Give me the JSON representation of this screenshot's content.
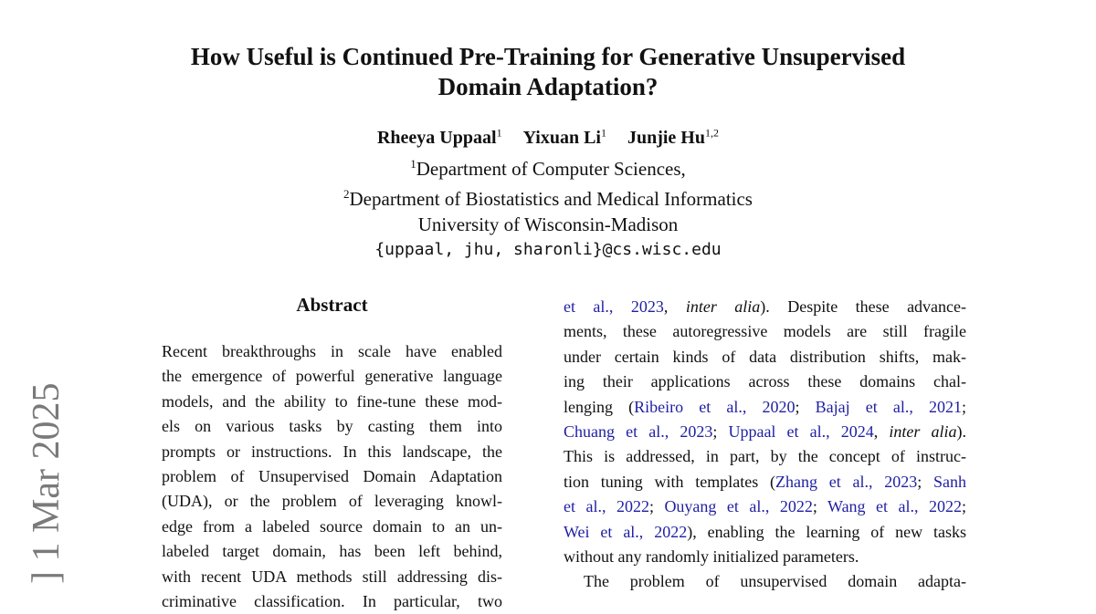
{
  "title": {
    "line1": "How Useful is Continued Pre-Training for Generative Unsupervised",
    "line2": "Domain Adaptation?"
  },
  "authors": [
    {
      "name": "Rheeya Uppaal",
      "sup": "1"
    },
    {
      "name": "Yixuan Li",
      "sup": "1"
    },
    {
      "name": "Junjie Hu",
      "sup": "1,2"
    }
  ],
  "affiliations": [
    {
      "sup": "1",
      "text": "Department of Computer Sciences,"
    },
    {
      "sup": "2",
      "text": "Department of Biostatistics and Medical Informatics"
    },
    {
      "sup": "",
      "text": "University of Wisconsin-Madison"
    }
  ],
  "email": "{uppaal, jhu, sharonli}@cs.wisc.edu",
  "arxiv_stamp": "] 1 Mar 2025",
  "abstract": {
    "heading": "Abstract",
    "lines": [
      "Recent breakthroughs in scale have enabled",
      "the emergence of powerful generative language",
      "models, and the ability to fine-tune these mod-",
      "els on various tasks by casting them into",
      "prompts or instructions. In this landscape, the",
      "problem of Unsupervised Domain Adaptation",
      "(UDA), or the problem of leveraging knowl-",
      "edge from a labeled source domain to an un-",
      "labeled target domain, has been left behind,",
      "with recent UDA methods still addressing dis-",
      "criminative classification. In particular, two"
    ]
  },
  "right_column": {
    "lines": [
      [
        {
          "t": "et al., 2023",
          "link": true
        },
        {
          "t": ", "
        },
        {
          "t": "inter alia",
          "italic": true
        },
        {
          "t": "). Despite these advance-"
        }
      ],
      [
        {
          "t": "ments, these autoregressive models are still fragile"
        }
      ],
      [
        {
          "t": "under certain kinds of data distribution shifts, mak-"
        }
      ],
      [
        {
          "t": "ing their applications across these domains chal-"
        }
      ],
      [
        {
          "t": "lenging ("
        },
        {
          "t": "Ribeiro et al., 2020",
          "link": true
        },
        {
          "t": "; "
        },
        {
          "t": "Bajaj et al., 2021",
          "link": true
        },
        {
          "t": ";"
        }
      ],
      [
        {
          "t": "Chuang et al., 2023",
          "link": true
        },
        {
          "t": "; "
        },
        {
          "t": "Uppaal et al., 2024",
          "link": true
        },
        {
          "t": ", "
        },
        {
          "t": "inter alia",
          "italic": true
        },
        {
          "t": ")."
        }
      ],
      [
        {
          "t": "This is addressed, in part, by the concept of instruc-"
        }
      ],
      [
        {
          "t": "tion tuning with templates ("
        },
        {
          "t": "Zhang et al., 2023",
          "link": true
        },
        {
          "t": "; "
        },
        {
          "t": "Sanh",
          "link": true
        }
      ],
      [
        {
          "t": "et al., 2022",
          "link": true
        },
        {
          "t": "; "
        },
        {
          "t": "Ouyang et al., 2022",
          "link": true
        },
        {
          "t": "; "
        },
        {
          "t": "Wang et al., 2022",
          "link": true
        },
        {
          "t": ";"
        }
      ],
      [
        {
          "t": "Wei et al., 2022",
          "link": true
        },
        {
          "t": "), enabling the learning of new tasks"
        }
      ],
      [
        {
          "t": "without any randomly initialized parameters."
        }
      ],
      [
        {
          "t": "The problem of unsupervised domain adapta-"
        }
      ]
    ]
  },
  "colors": {
    "link": "#1f1fa3",
    "stamp": "#7a7a7a"
  }
}
